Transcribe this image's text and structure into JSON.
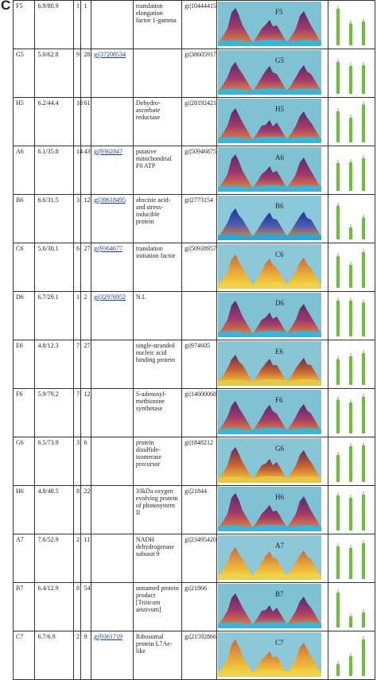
{
  "panel_label": "C",
  "rows": [
    {
      "id": "F5",
      "mw": "6.9/80.9",
      "n1": "1",
      "n2": "1",
      "link": "",
      "name": "translation elongation factor 1-gamma",
      "gi": "gi|10444415",
      "gi_big": false,
      "spot": "F5",
      "scheme": "purple",
      "bars": [
        0.92,
        0.55,
        0.6
      ]
    },
    {
      "id": "G5",
      "mw": "5.0/62.8",
      "n1": "9",
      "n2": "28",
      "link": "gi|37208534",
      "name": "",
      "gi": "gi|38605917",
      "gi_big": false,
      "spot": "G5",
      "scheme": "purple",
      "bars": [
        0.8,
        0.7,
        0.72
      ]
    },
    {
      "id": "H5",
      "mw": "6.2/44.4",
      "n1": "18",
      "n2": "61",
      "link": "",
      "name": "Dehydro-ascorbate reductase",
      "gi": "gi|28192421",
      "gi_big": false,
      "spot": "H5",
      "scheme": "purple",
      "bars": [
        0.78,
        0.62,
        0.95
      ]
    },
    {
      "id": "A6",
      "mw": "6.1/35.8",
      "n1": "14",
      "n2": "43",
      "link": "gi|9362847",
      "name": "putative mitochondrial F0 ATP",
      "gi": "gi|50946875",
      "gi_big": false,
      "spot": "A6",
      "scheme": "purple",
      "bars": [
        0.7,
        0.72,
        0.82
      ]
    },
    {
      "id": "B6",
      "mw": "6.6/31.5",
      "n1": "3",
      "n2": "12",
      "link": "gi|39618495",
      "name": "abscisic acid-and stress-inducible protein",
      "gi": "gi|2773154",
      "gi_big": false,
      "spot": "B6",
      "scheme": "blue",
      "bars": [
        0.85,
        0.3,
        0.55
      ]
    },
    {
      "id": "C6",
      "mw": "5.6/30.1",
      "n1": "6",
      "n2": "27",
      "link": "gi|9364677",
      "name": "translation initiation factor",
      "gi": "gi|50938957",
      "gi_big": false,
      "spot": "C6",
      "scheme": "yellow",
      "bars": [
        0.8,
        0.58,
        0.9
      ]
    },
    {
      "id": "D6",
      "mw": "6.7/29.1",
      "n1": "1",
      "n2": "2",
      "link": "gi|32976952",
      "name": "N.I.",
      "gi": "",
      "gi_big": false,
      "spot": "D6",
      "scheme": "purple",
      "bars": [
        0.9,
        0.9,
        0.85
      ]
    },
    {
      "id": "E6",
      "mw": "4.8/12.3",
      "n1": "7",
      "n2": "27",
      "link": "",
      "name": "single-stranded nucleic acid binding protein",
      "gi": "gi|974605",
      "gi_big": false,
      "spot": "E6",
      "scheme": "orange",
      "bars": [
        0.65,
        0.72,
        0.8
      ]
    },
    {
      "id": "F6",
      "mw": "5.9/79.2",
      "n1": "7",
      "n2": "12",
      "link": "",
      "name": "S-adenosyl-methionine synthetase",
      "gi": "gi|14600068",
      "gi_big": false,
      "spot": "F6",
      "scheme": "purple",
      "bars": [
        0.85,
        0.78,
        0.92
      ]
    },
    {
      "id": "G6",
      "mw": "6.5/73.9",
      "n1": "3",
      "n2": "6",
      "link": "",
      "name": "protein disulfide-isomerase precursor",
      "gi": "gi|1848212",
      "gi_big": false,
      "spot": "G6",
      "scheme": "orange",
      "bars": [
        0.68,
        0.9,
        0.92
      ]
    },
    {
      "id": "H6",
      "mw": "4.8/48.5",
      "n1": "8",
      "n2": "22",
      "link": "",
      "name": "33kDa oxygen evolving protein of photosystem II",
      "gi": "gi|21844",
      "gi_big": false,
      "spot": "H6",
      "scheme": "purple",
      "bars": [
        0.88,
        0.82,
        0.9
      ]
    },
    {
      "id": "A7",
      "mw": "7.6/52.9",
      "n1": "2",
      "n2": "11",
      "link": "",
      "name": "NADH dehydrogenase subunit 9",
      "gi": "gi|23495420",
      "gi_big": false,
      "spot": "A7",
      "scheme": "yellow",
      "bars": [
        0.82,
        0.78,
        0.9
      ]
    },
    {
      "id": "B7",
      "mw": "6.4/12.9",
      "n1": "8",
      "n2": "54",
      "link": "",
      "name": "unnamed protein product [Triticum aestivum]",
      "gi": "gi|21866",
      "gi_big": true,
      "spot": "B7",
      "scheme": "purple",
      "bars": [
        0.88,
        0.28,
        0.38
      ]
    },
    {
      "id": "C7",
      "mw": "6.7/6.9",
      "n1": "2",
      "n2": "9",
      "link": "gi|9361719",
      "name": "Ribosomal protein L7Ae-like",
      "gi": "gi|21592866",
      "gi_big": false,
      "spot": "C7",
      "scheme": "yellow",
      "bars": [
        0.3,
        0.5,
        0.92
      ]
    }
  ]
}
